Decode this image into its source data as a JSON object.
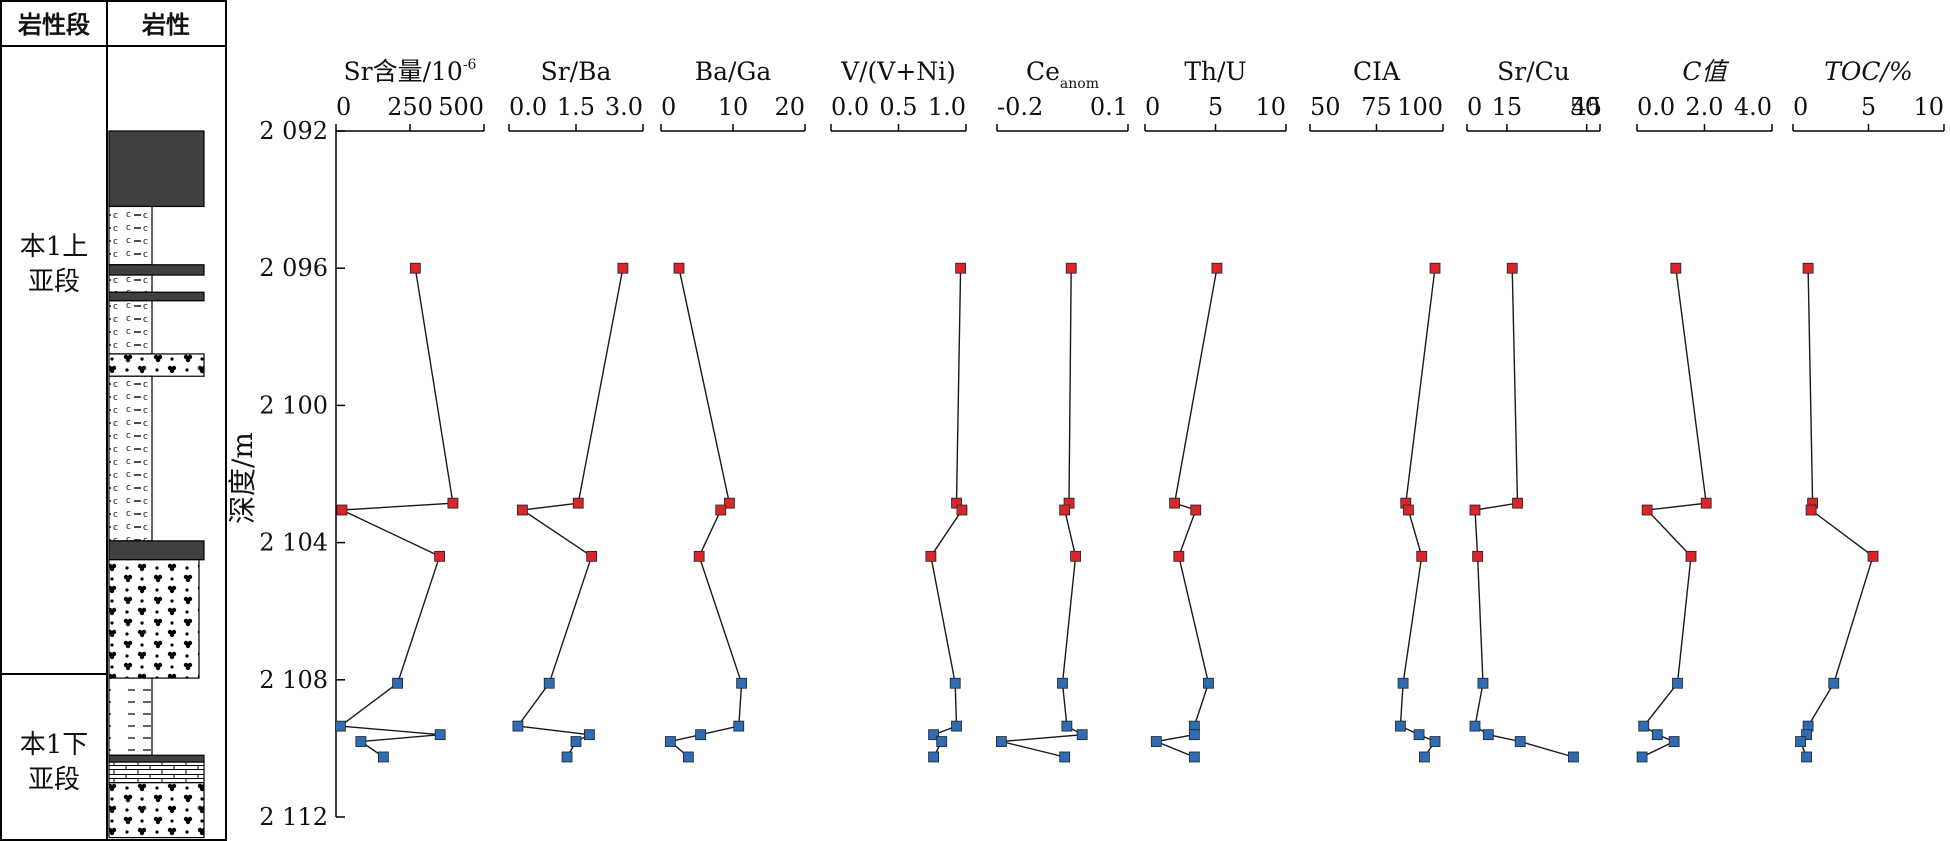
{
  "strat_header": {
    "segment": "岩性段",
    "lithology": "岩性"
  },
  "members": [
    {
      "line1": "本1上",
      "line2": "亚段"
    },
    {
      "line1": "本1下",
      "line2": "亚段"
    }
  ],
  "lith_units": [
    {
      "top": 2092.0,
      "bottom": 2094.2,
      "type": "mudstone",
      "grain": "wide"
    },
    {
      "top": 2094.2,
      "bottom": 2095.9,
      "type": "calc_siltstone",
      "grain": "narrow"
    },
    {
      "top": 2095.9,
      "bottom": 2096.2,
      "type": "mudstone",
      "grain": "wide"
    },
    {
      "top": 2096.2,
      "bottom": 2096.7,
      "type": "calc_siltstone",
      "grain": "narrow"
    },
    {
      "top": 2096.7,
      "bottom": 2096.95,
      "type": "mudstone",
      "grain": "wide"
    },
    {
      "top": 2096.95,
      "bottom": 2098.5,
      "type": "calc_siltstone",
      "grain": "narrow"
    },
    {
      "top": 2098.5,
      "bottom": 2099.15,
      "type": "conglomerate",
      "grain": "wide"
    },
    {
      "top": 2099.15,
      "bottom": 2103.95,
      "type": "calc_siltstone",
      "grain": "narrow"
    },
    {
      "top": 2103.95,
      "bottom": 2104.5,
      "type": "mudstone",
      "grain": "wide"
    },
    {
      "top": 2104.5,
      "bottom": 2107.95,
      "type": "conglomerate",
      "grain": "medium"
    },
    {
      "top": 2107.95,
      "bottom": 2110.2,
      "type": "siltstone",
      "grain": "narrow"
    },
    {
      "top": 2110.2,
      "bottom": 2110.4,
      "type": "mudstone",
      "grain": "wide"
    },
    {
      "top": 2110.4,
      "bottom": 2111.0,
      "type": "limestone",
      "grain": "wide"
    },
    {
      "top": 2111.0,
      "bottom": 2112.6,
      "type": "conglomerate",
      "grain": "wide"
    }
  ],
  "chart_data": {
    "type": "scatter",
    "depth_axis": {
      "label": "深度/m",
      "min": 2092,
      "max": 2112,
      "ticks": [
        2092,
        2096,
        2100,
        2104,
        2108,
        2112
      ],
      "tick_labels": [
        "2 092",
        "2 096",
        "2 100",
        "2 104",
        "2 108",
        "2 112"
      ],
      "reversed": true
    },
    "depths": [
      2096.0,
      2102.85,
      2103.05,
      2104.4,
      2108.1,
      2109.35,
      2109.6,
      2109.8,
      2110.25
    ],
    "marker_colors": {
      "upper": "#d7262c",
      "lower": "#2e6db4"
    },
    "point_groups": [
      "upper",
      "upper",
      "upper",
      "upper",
      "lower",
      "lower",
      "lower",
      "lower",
      "lower"
    ],
    "panels": [
      {
        "label": "Sr含量/10",
        "sup": "-6",
        "min": 0,
        "max": 500,
        "ticks": [
          0,
          250,
          500
        ],
        "tick_labels": [
          "0",
          "250",
          "500"
        ],
        "points": [
          {
            "d": 2096.0,
            "v": 268
          },
          {
            "d": 2102.85,
            "v": 395
          },
          {
            "d": 2103.05,
            "v": 20
          },
          {
            "d": 2104.4,
            "v": 350
          },
          {
            "d": 2108.1,
            "v": 208
          },
          {
            "d": 2109.35,
            "v": 15
          },
          {
            "d": 2109.6,
            "v": 352
          },
          {
            "d": 2109.8,
            "v": 84
          },
          {
            "d": 2110.25,
            "v": 160
          }
        ]
      },
      {
        "label": "Sr/Ba",
        "min": 0,
        "max": 3.0,
        "ticks": [
          0,
          1.5,
          3.0
        ],
        "tick_labels": [
          "0.0",
          "1.5",
          "3.0"
        ],
        "points": [
          {
            "d": 2096.0,
            "v": 2.55
          },
          {
            "d": 2102.85,
            "v": 1.55
          },
          {
            "d": 2103.05,
            "v": 0.3
          },
          {
            "d": 2104.4,
            "v": 1.85
          },
          {
            "d": 2108.1,
            "v": 0.9
          },
          {
            "d": 2109.35,
            "v": 0.2
          },
          {
            "d": 2109.6,
            "v": 1.8
          },
          {
            "d": 2109.8,
            "v": 1.5
          },
          {
            "d": 2110.25,
            "v": 1.3
          }
        ]
      },
      {
        "label": "Ba/Ga",
        "min": 0,
        "max": 20,
        "ticks": [
          0,
          10,
          20
        ],
        "tick_labels": [
          "0",
          "10",
          "20"
        ],
        "points": [
          {
            "d": 2096.0,
            "v": 2.5
          },
          {
            "d": 2102.85,
            "v": 9.5
          },
          {
            "d": 2103.05,
            "v": 8.3
          },
          {
            "d": 2104.4,
            "v": 5.3
          },
          {
            "d": 2108.1,
            "v": 11.2
          },
          {
            "d": 2109.35,
            "v": 10.8
          },
          {
            "d": 2109.6,
            "v": 5.5
          },
          {
            "d": 2109.8,
            "v": 1.3
          },
          {
            "d": 2110.25,
            "v": 3.8
          }
        ]
      },
      {
        "label": "V/(V+Ni)",
        "min": 0,
        "max": 1.0,
        "ticks": [
          0,
          0.5,
          1.0
        ],
        "tick_labels": [
          "0.0",
          "0.5",
          "1.0"
        ],
        "points": [
          {
            "d": 2096.0,
            "v": 0.96
          },
          {
            "d": 2102.85,
            "v": 0.93
          },
          {
            "d": 2103.05,
            "v": 0.97
          },
          {
            "d": 2104.4,
            "v": 0.74
          },
          {
            "d": 2108.1,
            "v": 0.92
          },
          {
            "d": 2109.35,
            "v": 0.93
          },
          {
            "d": 2109.6,
            "v": 0.76
          },
          {
            "d": 2109.8,
            "v": 0.82
          },
          {
            "d": 2110.25,
            "v": 0.76
          }
        ]
      },
      {
        "label": "Ce",
        "sub": "anom",
        "min": -0.2,
        "max": 0.1,
        "ticks": [
          -0.2,
          0.1
        ],
        "tick_labels": [
          "-0.2",
          "0.1"
        ],
        "points": [
          {
            "d": 2096.0,
            "v": -0.03
          },
          {
            "d": 2102.85,
            "v": -0.035
          },
          {
            "d": 2103.05,
            "v": -0.045
          },
          {
            "d": 2104.4,
            "v": -0.02
          },
          {
            "d": 2108.1,
            "v": -0.05
          },
          {
            "d": 2109.35,
            "v": -0.04
          },
          {
            "d": 2109.6,
            "v": -0.005
          },
          {
            "d": 2109.8,
            "v": -0.19
          },
          {
            "d": 2110.25,
            "v": -0.045
          }
        ]
      },
      {
        "label": "Th/U",
        "min": 0,
        "max": 10,
        "ticks": [
          0,
          5,
          10
        ],
        "tick_labels": [
          "0",
          "5",
          "10"
        ],
        "points": [
          {
            "d": 2096.0,
            "v": 5.1
          },
          {
            "d": 2102.85,
            "v": 2.1
          },
          {
            "d": 2103.05,
            "v": 3.6
          },
          {
            "d": 2104.4,
            "v": 2.4
          },
          {
            "d": 2108.1,
            "v": 4.5
          },
          {
            "d": 2109.35,
            "v": 3.5
          },
          {
            "d": 2109.6,
            "v": 3.5
          },
          {
            "d": 2109.8,
            "v": 0.8
          },
          {
            "d": 2110.25,
            "v": 3.5
          }
        ]
      },
      {
        "label": "CIA",
        "min": 50,
        "max": 100,
        "ticks": [
          50,
          75,
          100
        ],
        "tick_labels": [
          "50",
          "75",
          "100"
        ],
        "points": [
          {
            "d": 2096.0,
            "v": 97
          },
          {
            "d": 2102.85,
            "v": 86
          },
          {
            "d": 2103.05,
            "v": 87
          },
          {
            "d": 2104.4,
            "v": 92
          },
          {
            "d": 2108.1,
            "v": 85
          },
          {
            "d": 2109.35,
            "v": 84
          },
          {
            "d": 2109.6,
            "v": 91
          },
          {
            "d": 2109.8,
            "v": 97
          },
          {
            "d": 2110.25,
            "v": 93
          }
        ]
      },
      {
        "label": "Sr/Cu",
        "min": 0,
        "max": 50,
        "ticks": [
          0,
          15,
          45,
          50
        ],
        "tick_labels": [
          "0",
          "15",
          "45",
          "50"
        ],
        "points": [
          {
            "d": 2096.0,
            "v": 17
          },
          {
            "d": 2102.85,
            "v": 19
          },
          {
            "d": 2103.05,
            "v": 3
          },
          {
            "d": 2104.4,
            "v": 4
          },
          {
            "d": 2108.1,
            "v": 6
          },
          {
            "d": 2109.35,
            "v": 3
          },
          {
            "d": 2109.6,
            "v": 8
          },
          {
            "d": 2109.8,
            "v": 20
          },
          {
            "d": 2110.25,
            "v": 40
          }
        ]
      },
      {
        "label": "C值",
        "min": 0,
        "max": 4.0,
        "ticks": [
          0,
          2.0,
          4.0
        ],
        "tick_labels": [
          "0.0",
          "2.0",
          "4.0"
        ],
        "points": [
          {
            "d": 2096.0,
            "v": 1.15
          },
          {
            "d": 2102.85,
            "v": 2.05
          },
          {
            "d": 2103.05,
            "v": 0.3
          },
          {
            "d": 2104.4,
            "v": 1.6
          },
          {
            "d": 2108.1,
            "v": 1.2
          },
          {
            "d": 2109.35,
            "v": 0.2
          },
          {
            "d": 2109.6,
            "v": 0.6
          },
          {
            "d": 2109.8,
            "v": 1.1
          },
          {
            "d": 2110.25,
            "v": 0.15
          }
        ]
      },
      {
        "label": "TOC/%",
        "min": 0,
        "max": 10,
        "ticks": [
          0,
          5,
          10
        ],
        "tick_labels": [
          "0",
          "5",
          "10"
        ],
        "points": [
          {
            "d": 2096.0,
            "v": 1.0
          },
          {
            "d": 2102.85,
            "v": 1.3
          },
          {
            "d": 2103.05,
            "v": 1.2
          },
          {
            "d": 2104.4,
            "v": 5.3
          },
          {
            "d": 2108.1,
            "v": 2.7
          },
          {
            "d": 2109.35,
            "v": 1.0
          },
          {
            "d": 2109.6,
            "v": 0.9
          },
          {
            "d": 2109.8,
            "v": 0.5
          },
          {
            "d": 2110.25,
            "v": 0.9
          }
        ]
      }
    ]
  }
}
